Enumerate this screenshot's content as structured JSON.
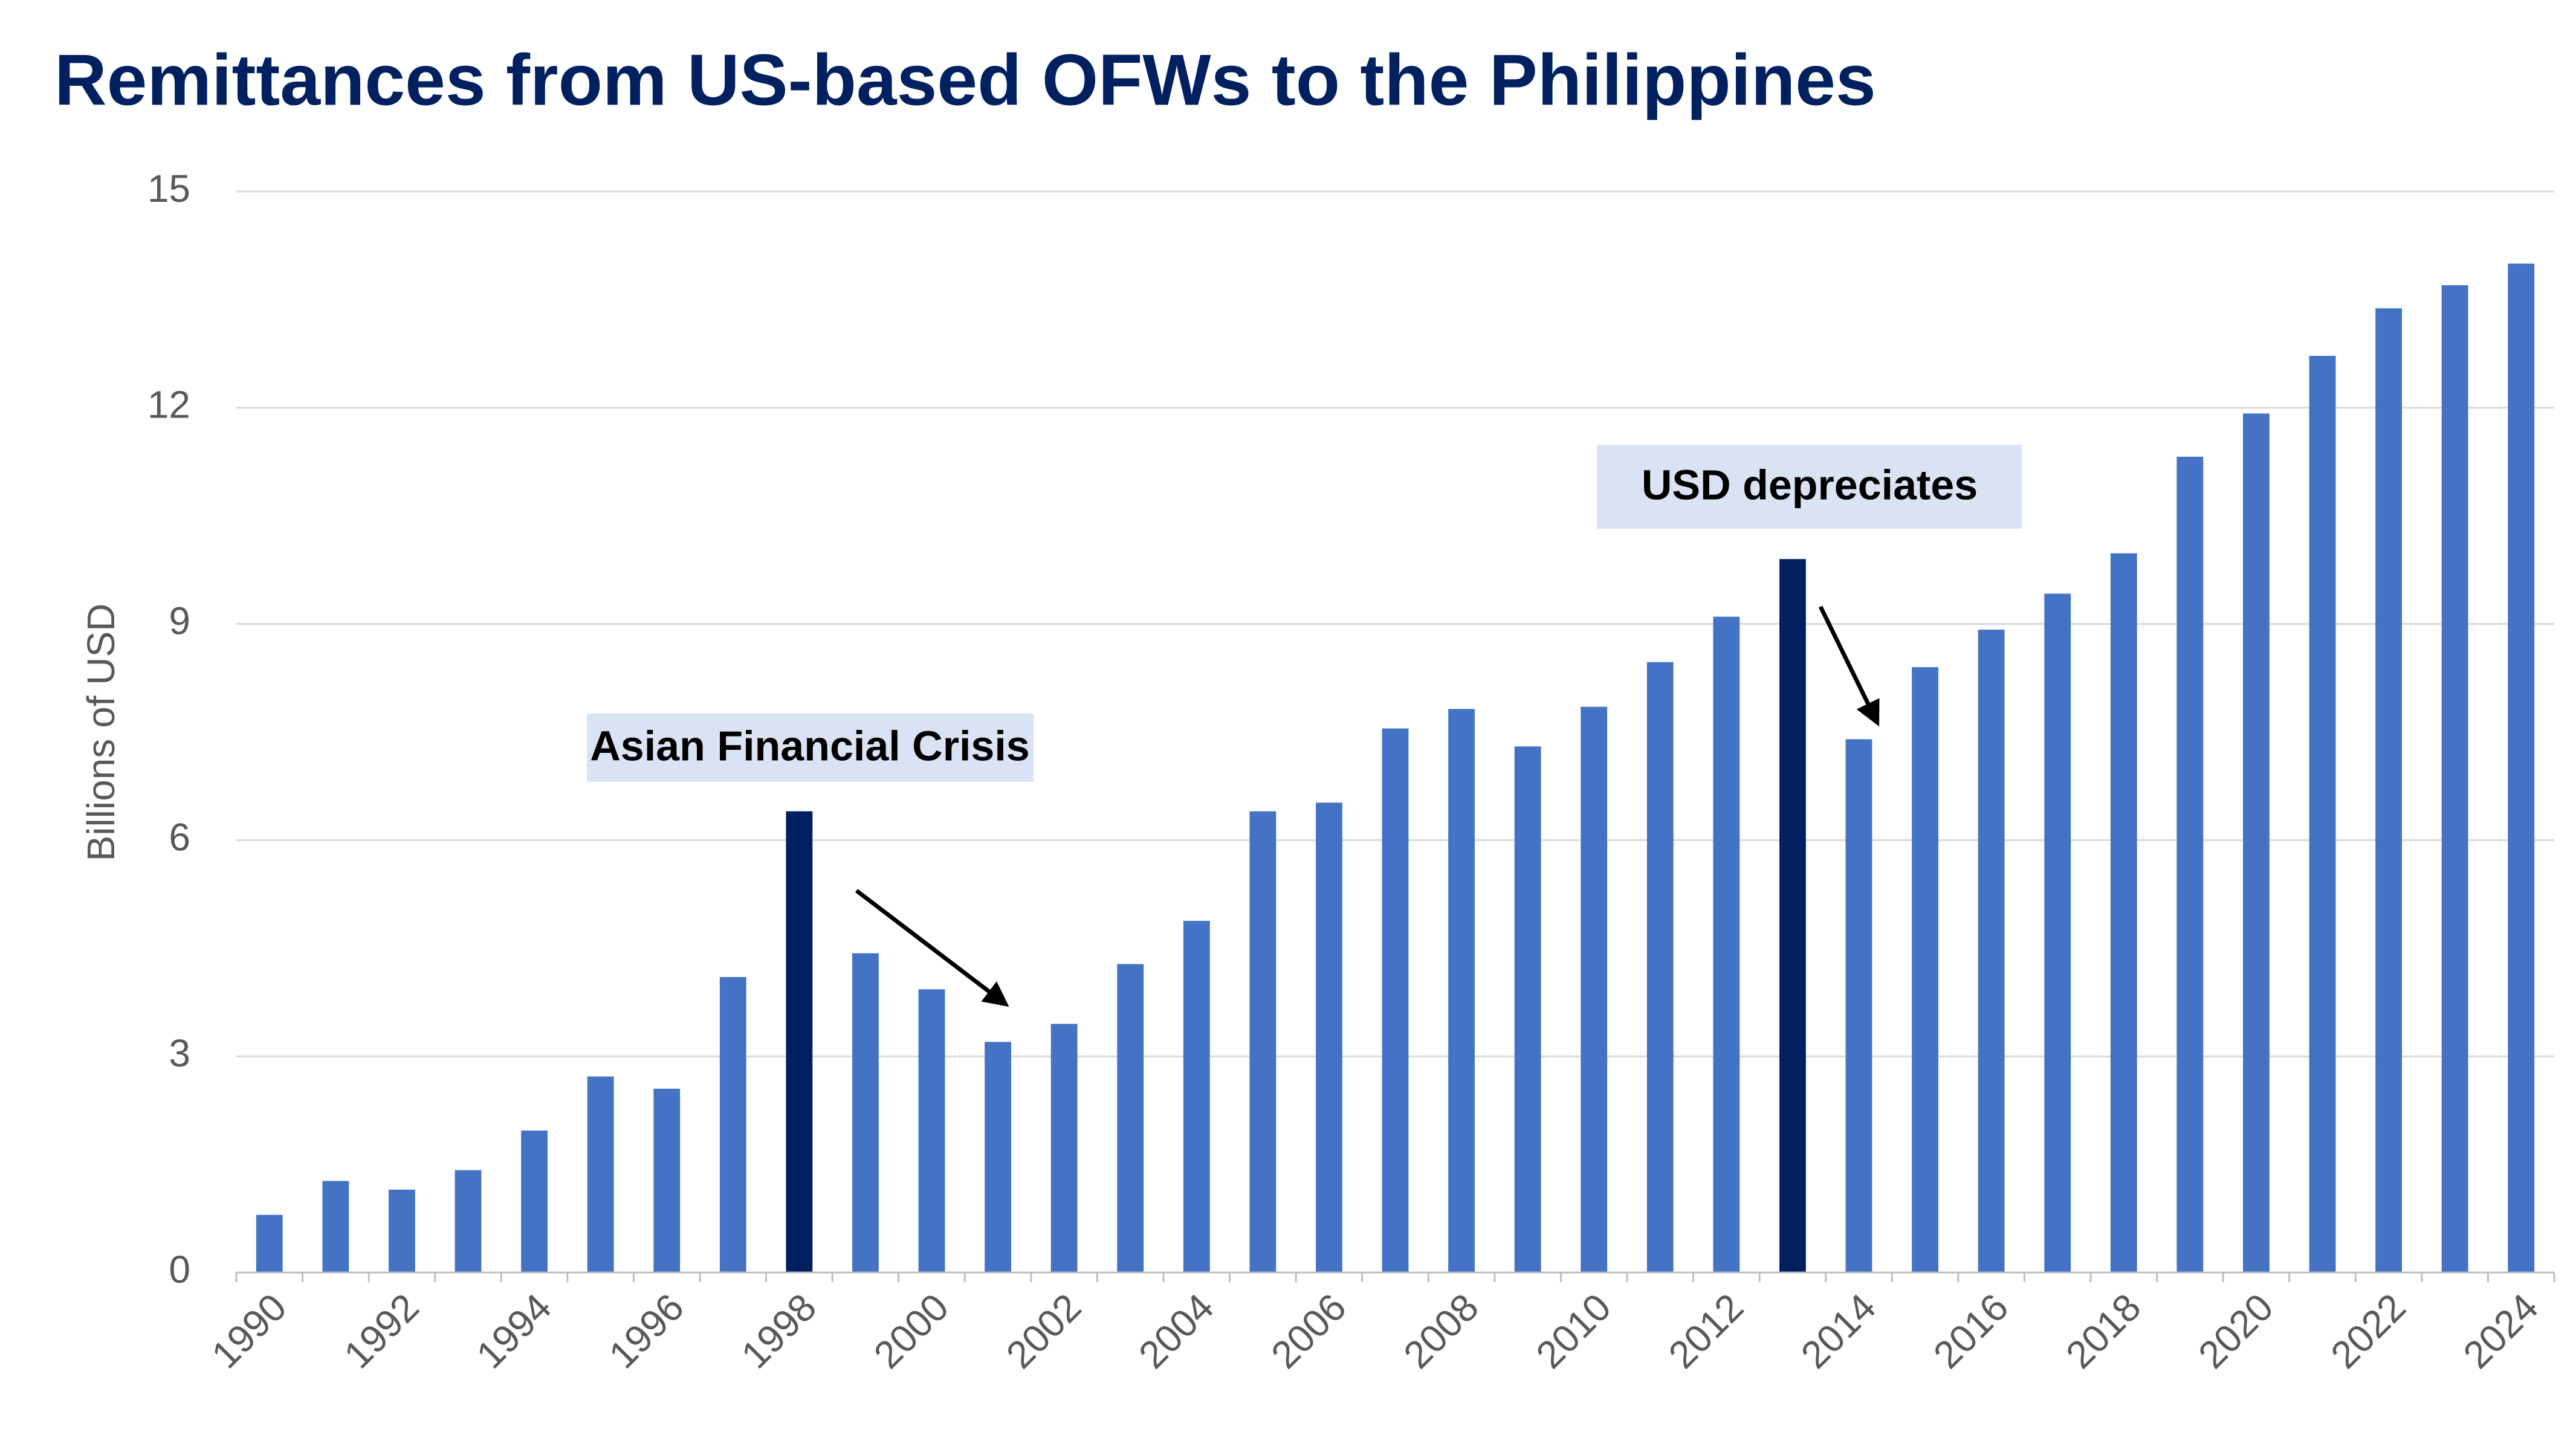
{
  "chart_data": {
    "type": "bar",
    "title": "Remittances from US-based OFWs to the Philippines",
    "ylabel": "Billions of USD",
    "categories": [
      "1990",
      null,
      "1992",
      null,
      "1994",
      null,
      "1996",
      null,
      "1998",
      null,
      "2000",
      null,
      "2002",
      null,
      "2004",
      null,
      "2006",
      null,
      "2008",
      null,
      "2010",
      null,
      "2012",
      null,
      "2014",
      null,
      "2016",
      null,
      "2018",
      null,
      "2020",
      null,
      "2022",
      null,
      "2024"
    ],
    "values": [
      0.8,
      1.27,
      1.15,
      1.42,
      1.97,
      2.72,
      2.55,
      4.1,
      6.4,
      4.43,
      3.93,
      3.2,
      3.45,
      4.28,
      4.88,
      6.4,
      6.52,
      7.55,
      7.82,
      7.3,
      7.85,
      8.47,
      9.1,
      9.9,
      7.4,
      8.4,
      8.92,
      9.42,
      9.98,
      11.32,
      11.92,
      12.72,
      13.38,
      13.7,
      14.0
    ],
    "colors": [
      "#4472c4",
      "#4472c4",
      "#4472c4",
      "#4472c4",
      "#4472c4",
      "#4472c4",
      "#4472c4",
      "#4472c4",
      "#002060",
      "#4472c4",
      "#4472c4",
      "#4472c4",
      "#4472c4",
      "#4472c4",
      "#4472c4",
      "#4472c4",
      "#4472c4",
      "#4472c4",
      "#4472c4",
      "#4472c4",
      "#4472c4",
      "#4472c4",
      "#4472c4",
      "#002060",
      "#4472c4",
      "#4472c4",
      "#4472c4",
      "#4472c4",
      "#4472c4",
      "#4472c4",
      "#4472c4",
      "#4472c4",
      "#4472c4",
      "#4472c4",
      "#4472c4"
    ],
    "ylim": [
      0,
      15
    ],
    "yticks": [
      0,
      3,
      6,
      9,
      12,
      15
    ],
    "grid": true,
    "annotations": [
      "Asian Financial Crisis",
      "USD depreciates"
    ]
  }
}
